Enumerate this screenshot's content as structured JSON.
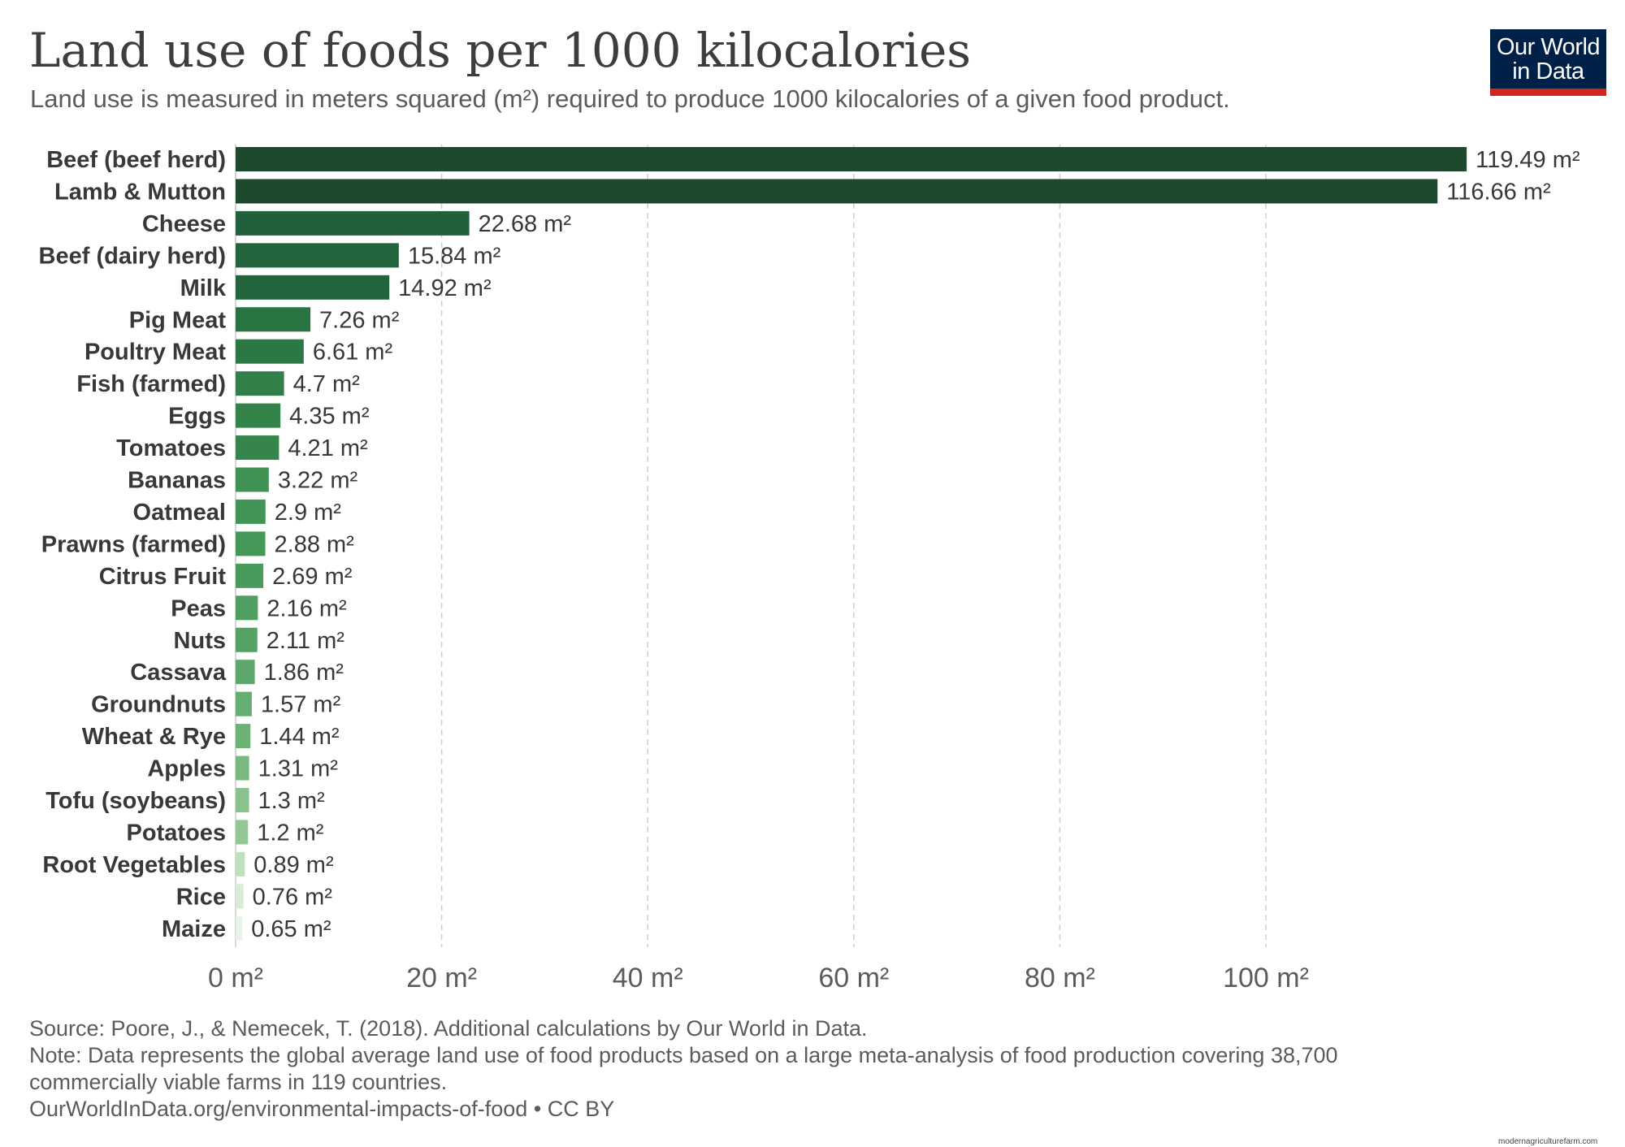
{
  "header": {
    "title": "Land use of foods per 1000 kilocalories",
    "subtitle": "Land use is measured in meters squared (m²) required to produce 1000 kilocalories of a given food product.",
    "logo_line1": "Our World",
    "logo_line2": "in Data"
  },
  "chart_data": {
    "type": "bar",
    "orientation": "horizontal",
    "title": "Land use of foods per 1000 kilocalories",
    "xlabel": "",
    "ylabel": "",
    "unit": "m²",
    "xlim": [
      0,
      120
    ],
    "xticks": [
      0,
      20,
      40,
      60,
      80,
      100
    ],
    "tick_labels": [
      "0 m²",
      "20 m²",
      "40 m²",
      "60 m²",
      "80 m²",
      "100 m²"
    ],
    "grid": "vertical dashed",
    "categories": [
      "Beef (beef herd)",
      "Lamb & Mutton",
      "Cheese",
      "Beef (dairy herd)",
      "Milk",
      "Pig Meat",
      "Poultry Meat",
      "Fish (farmed)",
      "Eggs",
      "Tomatoes",
      "Bananas",
      "Oatmeal",
      "Prawns (farmed)",
      "Citrus Fruit",
      "Peas",
      "Nuts",
      "Cassava",
      "Groundnuts",
      "Wheat & Rye",
      "Apples",
      "Tofu (soybeans)",
      "Potatoes",
      "Root Vegetables",
      "Rice",
      "Maize"
    ],
    "values": [
      119.49,
      116.66,
      22.68,
      15.84,
      14.92,
      7.26,
      6.61,
      4.7,
      4.35,
      4.21,
      3.22,
      2.9,
      2.88,
      2.69,
      2.16,
      2.11,
      1.86,
      1.57,
      1.44,
      1.31,
      1.3,
      1.2,
      0.89,
      0.76,
      0.65
    ],
    "value_labels": [
      "119.49 m²",
      "116.66 m²",
      "22.68 m²",
      "15.84 m²",
      "14.92 m²",
      "7.26 m²",
      "6.61 m²",
      "4.7 m²",
      "4.35 m²",
      "4.21 m²",
      "3.22 m²",
      "2.9 m²",
      "2.88 m²",
      "2.69 m²",
      "2.16 m²",
      "2.11 m²",
      "1.86 m²",
      "1.57 m²",
      "1.44 m²",
      "1.31 m²",
      "1.3 m²",
      "1.2 m²",
      "0.89 m²",
      "0.76 m²",
      "0.65 m²"
    ],
    "colors": [
      "#1d4a2c",
      "#1d4a2c",
      "#21603a",
      "#23643c",
      "#23643c",
      "#2a7442",
      "#2c7844",
      "#318049",
      "#33834b",
      "#35854c",
      "#3f9252",
      "#429556",
      "#449858",
      "#489b5a",
      "#519f60",
      "#54a263",
      "#5ca769",
      "#65ad70",
      "#6db275",
      "#79b97e",
      "#89c28c",
      "#93c796",
      "#bfdfbf",
      "#d8ecd8",
      "#e8f4e8"
    ]
  },
  "footer": {
    "source": "Source: Poore, J., & Nemecek, T. (2018). Additional calculations by Our World in Data.",
    "note": "Note: Data represents the global average land use of food products based on a large meta-analysis of food production covering 38,700 commercially viable farms in 119 countries.",
    "url": "OurWorldInData.org/environmental-impacts-of-food • CC BY"
  },
  "watermark": "modernagriculturefarm.com"
}
